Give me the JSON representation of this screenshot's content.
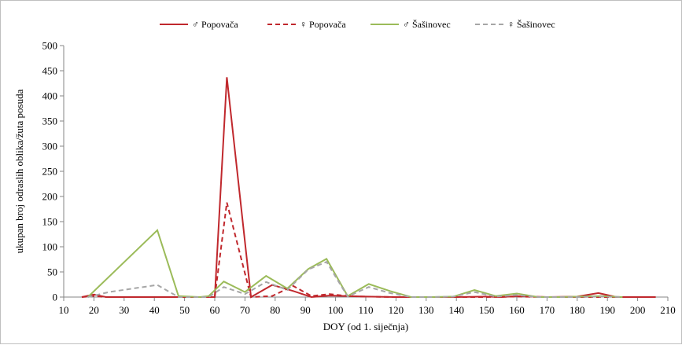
{
  "chart_data": {
    "type": "line",
    "title": "",
    "xlabel": "DOY (od 1. siječnja)",
    "ylabel": "ukupan broj odraslih oblika/žuta posuda",
    "xlim": [
      10,
      210
    ],
    "ylim": [
      0,
      500
    ],
    "xticks": [
      10,
      20,
      30,
      40,
      50,
      60,
      70,
      80,
      90,
      100,
      110,
      120,
      130,
      140,
      150,
      160,
      170,
      180,
      190,
      200,
      210
    ],
    "yticks": [
      0,
      50,
      100,
      150,
      200,
      250,
      300,
      350,
      400,
      450,
      500
    ],
    "grid": false,
    "legend_position": "top",
    "series": [
      {
        "name": "♂ Popovača",
        "color": "#c0282d",
        "dash": "solid",
        "points": [
          [
            16,
            0
          ],
          [
            20,
            5
          ],
          [
            24,
            0
          ],
          [
            30,
            0
          ],
          [
            40,
            0
          ],
          [
            48,
            0
          ],
          [
            56,
            0
          ],
          [
            60,
            0
          ],
          [
            64,
            437
          ],
          [
            72,
            0
          ],
          [
            79,
            24
          ],
          [
            86,
            12
          ],
          [
            92,
            0
          ],
          [
            98,
            3
          ],
          [
            104,
            2
          ],
          [
            110,
            1
          ],
          [
            120,
            0
          ],
          [
            130,
            0
          ],
          [
            140,
            0
          ],
          [
            150,
            1
          ],
          [
            155,
            0
          ],
          [
            160,
            2
          ],
          [
            170,
            0
          ],
          [
            180,
            1
          ],
          [
            187,
            8
          ],
          [
            193,
            0
          ],
          [
            200,
            0
          ],
          [
            206,
            0
          ]
        ]
      },
      {
        "name": "♀ Popovača",
        "color": "#c0282d",
        "dash": "dashed",
        "points": [
          [
            16,
            0
          ],
          [
            20,
            2
          ],
          [
            24,
            0
          ],
          [
            40,
            0
          ],
          [
            48,
            0
          ],
          [
            56,
            0
          ],
          [
            60,
            0
          ],
          [
            64,
            188
          ],
          [
            72,
            0
          ],
          [
            79,
            2
          ],
          [
            86,
            22
          ],
          [
            92,
            2
          ],
          [
            98,
            6
          ],
          [
            104,
            2
          ],
          [
            110,
            1
          ],
          [
            120,
            0
          ],
          [
            130,
            0
          ],
          [
            140,
            0
          ],
          [
            150,
            0
          ],
          [
            160,
            1
          ],
          [
            170,
            0
          ],
          [
            180,
            0
          ],
          [
            187,
            0
          ],
          [
            193,
            0
          ],
          [
            200,
            0
          ]
        ]
      },
      {
        "name": "♂ Šašinovec",
        "color": "#9bbb59",
        "dash": "solid",
        "points": [
          [
            18,
            0
          ],
          [
            41,
            133
          ],
          [
            48,
            2
          ],
          [
            55,
            0
          ],
          [
            58,
            2
          ],
          [
            63,
            31
          ],
          [
            70,
            10
          ],
          [
            77,
            42
          ],
          [
            84,
            17
          ],
          [
            91,
            56
          ],
          [
            97,
            76
          ],
          [
            104,
            2
          ],
          [
            111,
            26
          ],
          [
            118,
            12
          ],
          [
            125,
            0
          ],
          [
            132,
            0
          ],
          [
            139,
            1
          ],
          [
            146,
            14
          ],
          [
            153,
            2
          ],
          [
            160,
            7
          ],
          [
            167,
            0
          ],
          [
            174,
            0
          ],
          [
            181,
            1
          ],
          [
            188,
            2
          ],
          [
            195,
            0
          ]
        ]
      },
      {
        "name": "♀ Šašinovec",
        "color": "#a6a6a6",
        "dash": "dashed",
        "points": [
          [
            18,
            0
          ],
          [
            25,
            10
          ],
          [
            41,
            24
          ],
          [
            48,
            0
          ],
          [
            55,
            0
          ],
          [
            58,
            0
          ],
          [
            63,
            20
          ],
          [
            70,
            6
          ],
          [
            77,
            30
          ],
          [
            84,
            14
          ],
          [
            91,
            55
          ],
          [
            97,
            70
          ],
          [
            104,
            1
          ],
          [
            111,
            20
          ],
          [
            118,
            8
          ],
          [
            125,
            0
          ],
          [
            132,
            0
          ],
          [
            139,
            1
          ],
          [
            146,
            10
          ],
          [
            153,
            1
          ],
          [
            160,
            4
          ],
          [
            167,
            0
          ],
          [
            174,
            0
          ],
          [
            181,
            0
          ],
          [
            188,
            1
          ],
          [
            195,
            0
          ]
        ]
      }
    ]
  }
}
